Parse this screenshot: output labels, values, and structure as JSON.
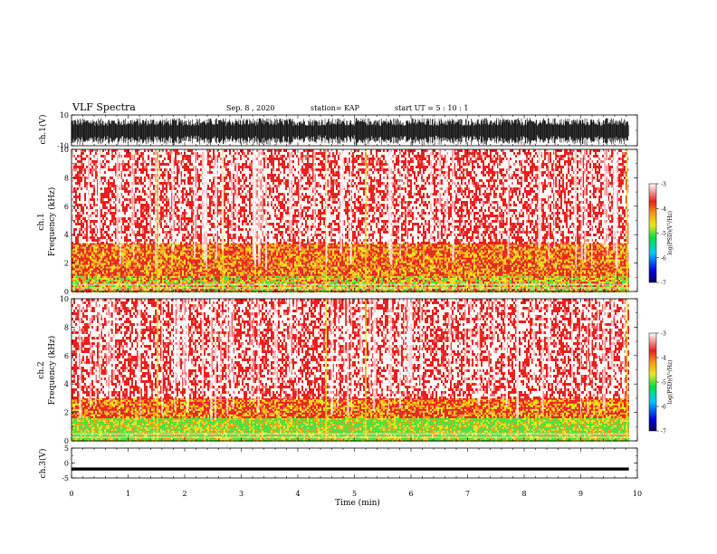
{
  "header": {
    "title": "VLF Spectra",
    "date": "Sep. 8 , 2020",
    "station": "station= KAP",
    "start": "start UT = 5 : 10 : 1"
  },
  "colors": {
    "spectrogram_background": "#ffffff",
    "spectrogram_red": "#e8201c",
    "spectrogram_orange": "#f59a14",
    "spectrogram_yellow": "#e8e21a",
    "spectrogram_green": "#45e03a",
    "waveform": "#000000"
  },
  "chart_data": [
    {
      "type": "line",
      "panel": "ch1-waveform",
      "ylabel": "ch.1(V)",
      "ylim": [
        -10,
        10
      ],
      "yticks": [
        "10",
        "-10"
      ],
      "x_range_min": [
        0,
        9.85
      ],
      "series": [
        {
          "description_values": "dense waveform oscillating roughly between -8 and 8 V across the record"
        }
      ]
    },
    {
      "type": "heatmap",
      "panel": "ch1-spectrogram",
      "ylabel_line1": "ch.1",
      "ylabel_line2": "Frequency (kHz)",
      "ylim": [
        0,
        10
      ],
      "yticks": [
        "0",
        "2",
        "4",
        "6",
        "8",
        "10"
      ],
      "x_range_min": [
        0,
        9.85
      ],
      "colorbar": {
        "label": "log(PSD)(V²/Hz)",
        "range": [
          -7,
          -3
        ],
        "ticks": [
          "-3",
          "-4",
          "-5",
          "-6",
          "-7"
        ]
      },
      "bands": [
        {
          "from_khz": 0,
          "to_khz": 1.2,
          "level": "yellow-green"
        },
        {
          "from_khz": 1.2,
          "to_khz": 3.4,
          "level": "orange-red"
        },
        {
          "from_khz": 3.4,
          "to_khz": 10,
          "level": "red speckle on white"
        }
      ],
      "bright_columns_min": [
        1.52,
        2.68,
        4.5,
        5.2,
        9.82
      ]
    },
    {
      "type": "heatmap",
      "panel": "ch2-spectrogram",
      "ylabel_line1": "ch.2",
      "ylabel_line2": "Frequency (kHz)",
      "ylim": [
        0,
        10
      ],
      "yticks": [
        "0",
        "2",
        "4",
        "6",
        "8",
        "10"
      ],
      "x_range_min": [
        0,
        9.85
      ],
      "colorbar": {
        "label": "log(PSD)(V²/Hz)",
        "range": [
          -7,
          -3
        ],
        "ticks": [
          "-3",
          "-4",
          "-5",
          "-6",
          "-7"
        ]
      },
      "bands": [
        {
          "from_khz": 0,
          "to_khz": 1.6,
          "level": "green-yellow"
        },
        {
          "from_khz": 1.6,
          "to_khz": 3.0,
          "level": "orange-red"
        },
        {
          "from_khz": 3.0,
          "to_khz": 10,
          "level": "red speckle on white"
        }
      ],
      "bright_columns_min": [
        1.52,
        4.5,
        5.2,
        9.82
      ]
    },
    {
      "type": "line",
      "panel": "ch3-waveform",
      "ylabel": "ch.3(V)",
      "ylim": [
        -5,
        5
      ],
      "yticks": [
        "5",
        "0",
        "-5"
      ],
      "x_range_min": [
        0,
        9.85
      ],
      "series": [
        {
          "description_values": "nearly constant thick trace at about -2 V"
        }
      ]
    }
  ],
  "xaxis": {
    "label": "Time (min)",
    "xlim": [
      0,
      10
    ],
    "ticks": [
      "0",
      "1",
      "2",
      "3",
      "4",
      "5",
      "6",
      "7",
      "8",
      "9",
      "10"
    ]
  }
}
